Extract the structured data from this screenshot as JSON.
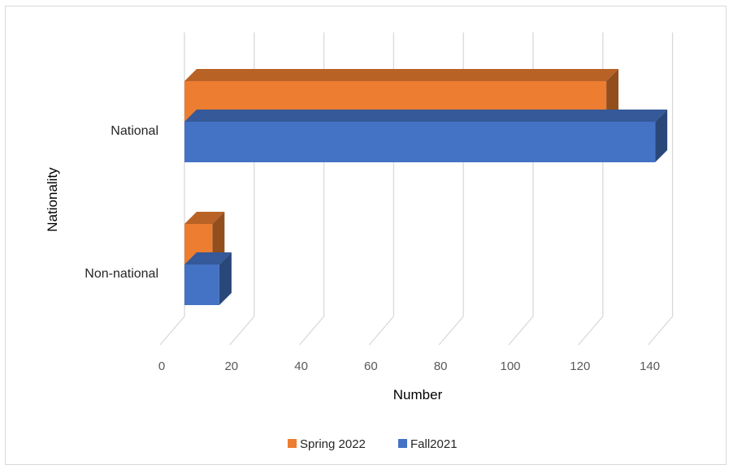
{
  "chart_data": {
    "type": "bar",
    "orientation": "horizontal",
    "style": "3d",
    "categories": [
      "National",
      "Non-national"
    ],
    "series": [
      {
        "name": "Spring 2022",
        "values": [
          121,
          8
        ],
        "color": "#ed7d31"
      },
      {
        "name": "Fall2021",
        "values": [
          135,
          10
        ],
        "color": "#4472c4"
      }
    ],
    "xlabel": "Number",
    "ylabel": "Nationality",
    "xlim": [
      0,
      140
    ],
    "xticks": [
      "0",
      "20",
      "40",
      "60",
      "80",
      "100",
      "120",
      "140"
    ],
    "grid": true,
    "legend_position": "bottom"
  }
}
